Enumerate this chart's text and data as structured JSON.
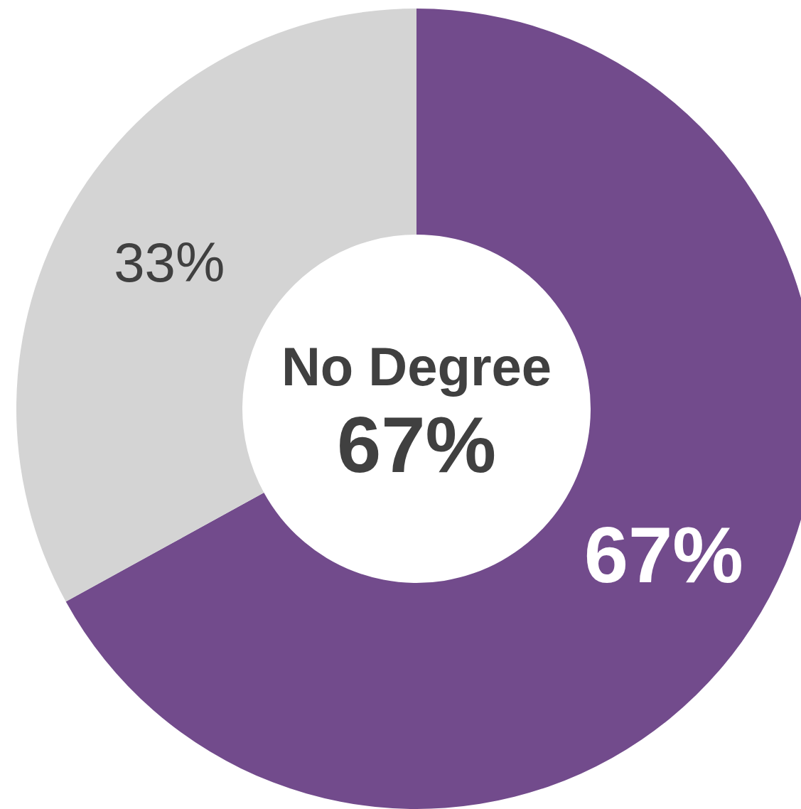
{
  "chart_data": {
    "type": "donut",
    "categories": [
      "No Degree",
      null
    ],
    "values": [
      67,
      33
    ],
    "colors": [
      "#724b8c",
      "#d4d4d4"
    ],
    "value_labels": [
      "67%",
      "33%"
    ],
    "legend": false
  }
}
